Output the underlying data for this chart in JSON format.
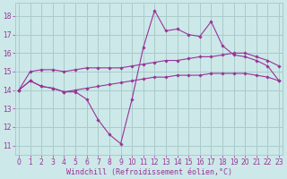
{
  "background_color": "#cce8e8",
  "grid_color": "#aacccc",
  "line_color": "#993399",
  "x_label": "Windchill (Refroidissement éolien,°C)",
  "x_ticks": [
    0,
    1,
    2,
    3,
    4,
    5,
    6,
    7,
    8,
    9,
    10,
    11,
    12,
    13,
    14,
    15,
    16,
    17,
    18,
    19,
    20,
    21,
    22,
    23
  ],
  "y_ticks": [
    11,
    12,
    13,
    14,
    15,
    16,
    17,
    18
  ],
  "ylim": [
    10.5,
    18.7
  ],
  "xlim": [
    -0.3,
    23.3
  ],
  "series": [
    [
      14.0,
      14.5,
      14.2,
      14.1,
      13.9,
      13.9,
      13.5,
      12.4,
      11.6,
      11.1,
      13.5,
      16.3,
      18.3,
      17.2,
      17.3,
      17.0,
      16.9,
      17.7,
      16.4,
      15.9,
      15.8,
      15.6,
      15.3,
      14.5
    ],
    [
      14.0,
      15.0,
      15.1,
      15.1,
      15.0,
      15.1,
      15.2,
      15.2,
      15.2,
      15.2,
      15.3,
      15.4,
      15.5,
      15.6,
      15.6,
      15.7,
      15.8,
      15.8,
      15.9,
      16.0,
      16.0,
      15.8,
      15.6,
      15.3
    ],
    [
      14.0,
      14.5,
      14.2,
      14.1,
      13.9,
      14.0,
      14.1,
      14.2,
      14.3,
      14.4,
      14.5,
      14.6,
      14.7,
      14.7,
      14.8,
      14.8,
      14.8,
      14.9,
      14.9,
      14.9,
      14.9,
      14.8,
      14.7,
      14.5
    ]
  ],
  "tick_fontsize": 5.5,
  "xlabel_fontsize": 6.0
}
